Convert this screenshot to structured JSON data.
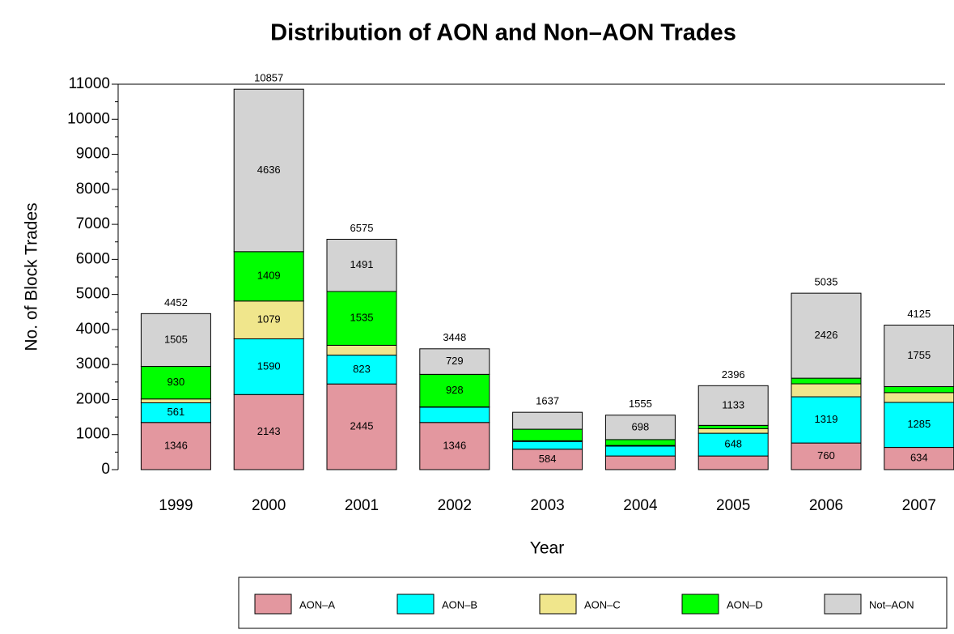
{
  "chart_data": {
    "type": "stacked_bar",
    "title": "Distribution of AON and Non–AON Trades",
    "x_label": "Year",
    "y_label": "No. of Block Trades",
    "categories": [
      "1999",
      "2000",
      "2001",
      "2002",
      "2003",
      "2004",
      "2005",
      "2006",
      "2007"
    ],
    "series": [
      {
        "name": "AON–A",
        "color": "#e3979f",
        "values": [
          1346,
          2143,
          2445,
          1346,
          584,
          390,
          390,
          760,
          634
        ],
        "value_labels": [
          "1346",
          "2143",
          "2445",
          "1346",
          "584",
          null,
          null,
          "760",
          "634"
        ]
      },
      {
        "name": "AON–B",
        "color": "#00ffff",
        "values": [
          561,
          1590,
          823,
          435,
          220,
          280,
          648,
          1319,
          1285
        ],
        "value_labels": [
          "561",
          "1590",
          "823",
          null,
          null,
          null,
          "648",
          "1319",
          "1285"
        ]
      },
      {
        "name": "AON–C",
        "color": "#f0e68c",
        "values": [
          110,
          1079,
          281,
          10,
          20,
          20,
          130,
          370,
          280
        ],
        "value_labels": [
          null,
          "1079",
          null,
          null,
          null,
          null,
          null,
          null,
          null
        ]
      },
      {
        "name": "AON–D",
        "color": "#00ff00",
        "values": [
          930,
          1409,
          1535,
          928,
          330,
          167,
          95,
          160,
          171
        ],
        "value_labels": [
          "930",
          "1409",
          "1535",
          "928",
          null,
          null,
          null,
          null,
          null
        ]
      },
      {
        "name": "Not–AON",
        "color": "#d3d3d3",
        "values": [
          1505,
          4636,
          1491,
          729,
          483,
          698,
          1133,
          2426,
          1755
        ],
        "value_labels": [
          "1505",
          "4636",
          "1491",
          "729",
          null,
          "698",
          "1133",
          "2426",
          "1755"
        ]
      }
    ],
    "totals": [
      4452,
      10857,
      6575,
      3448,
      1637,
      1555,
      2396,
      5035,
      4125
    ],
    "ylim": [
      0,
      11000
    ],
    "yticks": [
      0,
      1000,
      2000,
      3000,
      4000,
      5000,
      6000,
      7000,
      8000,
      9000,
      10000,
      11000
    ],
    "legend": "bottom"
  }
}
